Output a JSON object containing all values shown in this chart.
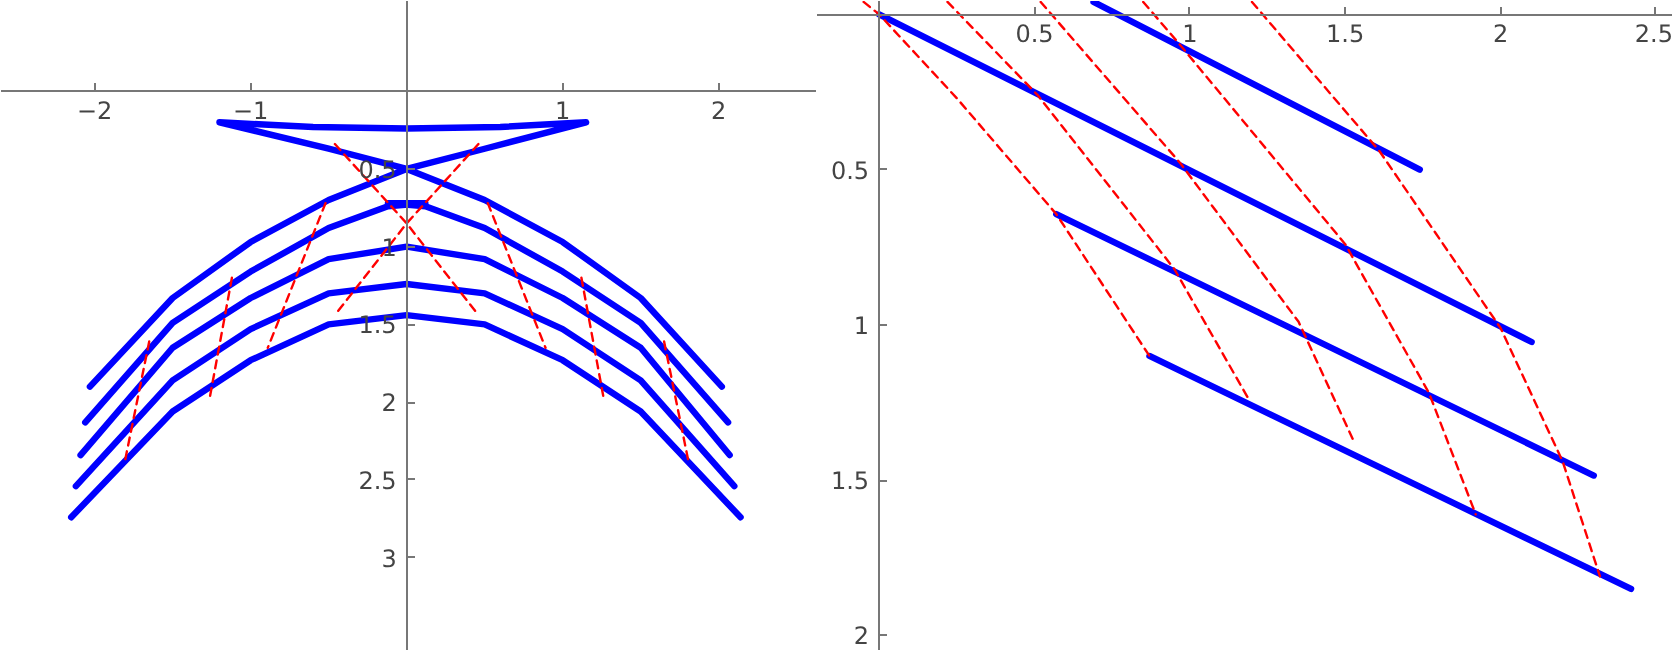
{
  "chart_data": [
    {
      "type": "line",
      "xlim": [
        -2.6,
        2.63
      ],
      "ylim": [
        3.6,
        -0.58
      ],
      "xticks": [
        -2,
        -1,
        1,
        2
      ],
      "yticks": [
        0.5,
        1,
        1.5,
        2,
        2.5,
        3
      ],
      "grid": false,
      "series": [
        {
          "color": "#0000ff",
          "line_style": "solid",
          "x": [
            -2.03,
            -1.5,
            -1.0,
            -0.5,
            0,
            0.5,
            1.15,
            0.6,
            0,
            -0.6,
            -1.2,
            -0.5,
            0,
            0.5,
            1.0,
            1.5,
            2.02
          ],
          "values": [
            1.9,
            1.33,
            0.97,
            0.7,
            0.5,
            0.37,
            0.2,
            0.23,
            0.24,
            0.23,
            0.2,
            0.37,
            0.5,
            0.7,
            0.97,
            1.33,
            1.9
          ]
        },
        {
          "color": "#0000ff",
          "line_style": "solid",
          "x": [
            -2.06,
            -1.5,
            -1.0,
            -0.5,
            -0.12,
            0.12,
            -0.12,
            0.12,
            0.5,
            1.0,
            1.5,
            2.06
          ],
          "values": [
            2.13,
            1.49,
            1.16,
            0.88,
            0.74,
            0.72,
            0.72,
            0.74,
            0.88,
            1.16,
            1.49,
            2.13
          ]
        },
        {
          "color": "#0000ff",
          "line_style": "solid",
          "x": [
            -2.09,
            -1.5,
            -1.0,
            -0.5,
            0,
            0.5,
            1.0,
            1.5,
            2.07
          ],
          "values": [
            2.34,
            1.65,
            1.33,
            1.08,
            1.0,
            1.08,
            1.33,
            1.65,
            2.34
          ]
        },
        {
          "color": "#0000ff",
          "line_style": "solid",
          "x": [
            -2.12,
            -1.5,
            -1.0,
            -0.5,
            0,
            0.5,
            1.0,
            1.5,
            2.1
          ],
          "values": [
            2.54,
            1.86,
            1.53,
            1.3,
            1.24,
            1.3,
            1.53,
            1.86,
            2.54
          ]
        },
        {
          "color": "#0000ff",
          "line_style": "solid",
          "x": [
            -2.15,
            -1.5,
            -1.0,
            -0.5,
            0,
            0.5,
            1.0,
            1.5,
            2.14
          ],
          "values": [
            2.74,
            2.06,
            1.73,
            1.5,
            1.44,
            1.5,
            1.73,
            2.06,
            2.74
          ]
        },
        {
          "color": "#ff0000",
          "line_style": "dashed",
          "x": [
            -0.46,
            0,
            0.46
          ],
          "values": [
            0.34,
            0.85,
            1.44
          ]
        },
        {
          "color": "#ff0000",
          "line_style": "dashed",
          "x": [
            0.46,
            0,
            -0.46
          ],
          "values": [
            0.34,
            0.85,
            1.44
          ]
        },
        {
          "color": "#ff0000",
          "line_style": "dashed",
          "x": [
            -0.52,
            -0.89
          ],
          "values": [
            0.72,
            1.65
          ]
        },
        {
          "color": "#ff0000",
          "line_style": "dashed",
          "x": [
            0.52,
            0.89
          ],
          "values": [
            0.72,
            1.65
          ]
        },
        {
          "color": "#ff0000",
          "line_style": "dashed",
          "x": [
            -1.12,
            -1.26
          ],
          "values": [
            1.2,
            1.96
          ]
        },
        {
          "color": "#ff0000",
          "line_style": "dashed",
          "x": [
            1.12,
            1.26
          ],
          "values": [
            1.2,
            1.96
          ]
        },
        {
          "color": "#ff0000",
          "line_style": "dashed",
          "x": [
            -1.65,
            -1.81
          ],
          "values": [
            1.61,
            2.4
          ]
        },
        {
          "color": "#ff0000",
          "line_style": "dashed",
          "x": [
            1.65,
            1.81
          ],
          "values": [
            1.61,
            2.4
          ]
        }
      ]
    },
    {
      "type": "line",
      "xlim": [
        -0.2,
        2.555
      ],
      "ylim": [
        2.05,
        -0.043
      ],
      "xticks": [
        0.5,
        1,
        1.5,
        2,
        2.5
      ],
      "yticks": [
        0.5,
        1,
        1.5,
        2
      ],
      "grid": false,
      "series": [
        {
          "color": "#0000ff",
          "line_style": "solid",
          "x": [
            0.69,
            1.74
          ],
          "values": [
            -0.04,
            0.5
          ]
        },
        {
          "color": "#0000ff",
          "line_style": "solid",
          "x": [
            0,
            2.1
          ],
          "values": [
            0,
            1.055
          ]
        },
        {
          "color": "#0000ff",
          "line_style": "solid",
          "x": [
            0.57,
            2.3
          ],
          "values": [
            0.643,
            1.485
          ]
        },
        {
          "color": "#0000ff",
          "line_style": "solid",
          "x": [
            0.87,
            2.42
          ],
          "values": [
            1.1,
            1.85
          ]
        },
        {
          "color": "#ff0000",
          "line_style": "dashed",
          "x": [
            -0.05,
            0,
            0.25,
            0.57,
            0.87
          ],
          "values": [
            -0.04,
            0,
            0.27,
            0.643,
            1.1
          ]
        },
        {
          "color": "#ff0000",
          "line_style": "dashed",
          "x": [
            0.22,
            0.51,
            0.95,
            1.19
          ],
          "values": [
            -0.04,
            0.26,
            0.82,
            1.24
          ]
        },
        {
          "color": "#ff0000",
          "line_style": "dashed",
          "x": [
            0.52,
            0.97,
            1.35,
            1.53
          ],
          "values": [
            -0.04,
            0.48,
            0.99,
            1.38
          ]
        },
        {
          "color": "#ff0000",
          "line_style": "dashed",
          "x": [
            0.85,
            0.97,
            1.5,
            1.77,
            1.92
          ],
          "values": [
            -0.04,
            0.1,
            0.74,
            1.22,
            1.61
          ]
        },
        {
          "color": "#ff0000",
          "line_style": "dashed",
          "x": [
            1.2,
            1.61,
            2.0,
            2.2,
            2.32
          ],
          "values": [
            -0.04,
            0.44,
            1.01,
            1.44,
            1.81
          ]
        }
      ]
    }
  ]
}
